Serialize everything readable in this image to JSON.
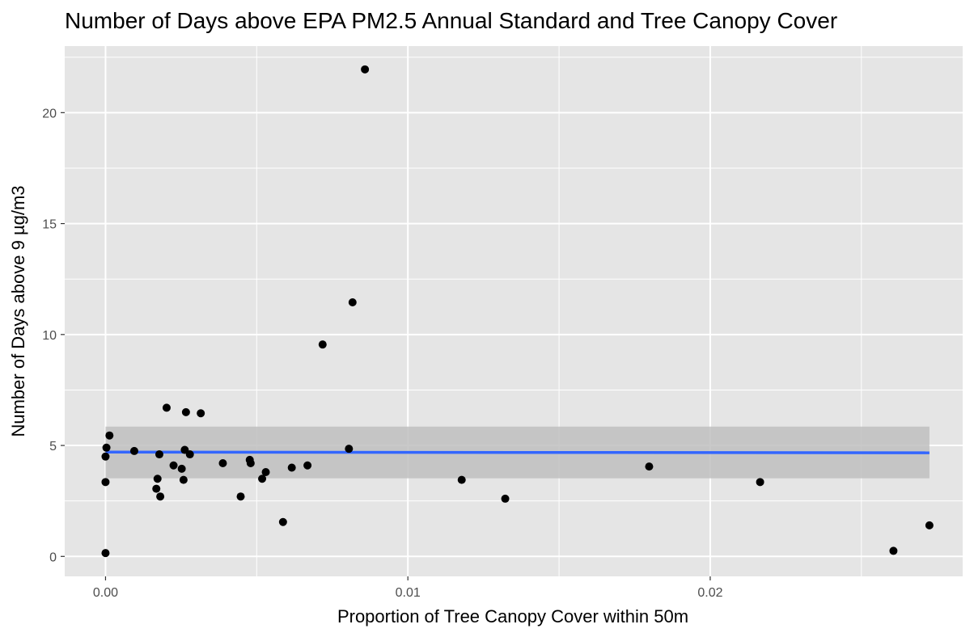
{
  "chart_data": {
    "type": "scatter",
    "title": "Number of Days above EPA PM2.5 Annual Standard and Tree Canopy Cover",
    "xlabel": "Proportion of Tree Canopy Cover within 50m",
    "ylabel": "Number of Days above 9 µg/m3",
    "xlim": [
      -0.00135,
      0.02835
    ],
    "ylim": [
      -0.9,
      23.0
    ],
    "x_ticks": [
      0.0,
      0.01,
      0.02
    ],
    "x_tick_labels": [
      "0.00",
      "0.01",
      "0.02"
    ],
    "y_ticks": [
      0,
      5,
      10,
      15,
      20
    ],
    "y_tick_labels": [
      "0",
      "5",
      "10",
      "15",
      "20"
    ],
    "grid": true,
    "legend": "none",
    "colors": {
      "panel": "#e5e5e5",
      "grid": "#ffffff",
      "points": "#000000",
      "fit_line": "#3366ff",
      "confidence_band": "#bfbfbf"
    },
    "points": [
      {
        "x": 0.0,
        "y": 0.15
      },
      {
        "x": 0.0,
        "y": 3.35
      },
      {
        "x": 0.0,
        "y": 4.5
      },
      {
        "x": 3e-05,
        "y": 4.9
      },
      {
        "x": 0.00013,
        "y": 5.45
      },
      {
        "x": 0.00095,
        "y": 4.75
      },
      {
        "x": 0.00168,
        "y": 3.05
      },
      {
        "x": 0.00172,
        "y": 3.5
      },
      {
        "x": 0.00178,
        "y": 4.6
      },
      {
        "x": 0.00181,
        "y": 2.7
      },
      {
        "x": 0.00202,
        "y": 6.7
      },
      {
        "x": 0.00225,
        "y": 4.1
      },
      {
        "x": 0.00252,
        "y": 3.95
      },
      {
        "x": 0.00258,
        "y": 3.45
      },
      {
        "x": 0.00262,
        "y": 4.8
      },
      {
        "x": 0.00266,
        "y": 6.5
      },
      {
        "x": 0.00279,
        "y": 4.6
      },
      {
        "x": 0.00315,
        "y": 6.45
      },
      {
        "x": 0.00388,
        "y": 4.2
      },
      {
        "x": 0.00447,
        "y": 2.7
      },
      {
        "x": 0.00477,
        "y": 4.35
      },
      {
        "x": 0.0048,
        "y": 4.2
      },
      {
        "x": 0.00518,
        "y": 3.5
      },
      {
        "x": 0.0053,
        "y": 3.8
      },
      {
        "x": 0.00587,
        "y": 1.55
      },
      {
        "x": 0.00616,
        "y": 4.0
      },
      {
        "x": 0.00668,
        "y": 4.1
      },
      {
        "x": 0.00718,
        "y": 9.55
      },
      {
        "x": 0.00805,
        "y": 4.85
      },
      {
        "x": 0.00817,
        "y": 11.45
      },
      {
        "x": 0.00858,
        "y": 21.95
      },
      {
        "x": 0.01178,
        "y": 3.45
      },
      {
        "x": 0.01322,
        "y": 2.6
      },
      {
        "x": 0.01798,
        "y": 4.05
      },
      {
        "x": 0.02165,
        "y": 3.35
      },
      {
        "x": 0.02606,
        "y": 0.25
      },
      {
        "x": 0.02725,
        "y": 1.4
      }
    ],
    "fit": {
      "method": "linear",
      "x_range": [
        0.0,
        0.02725
      ],
      "y_start": 4.7,
      "y_end": 4.67,
      "ci_lower": 3.52,
      "ci_upper": 5.85
    }
  }
}
